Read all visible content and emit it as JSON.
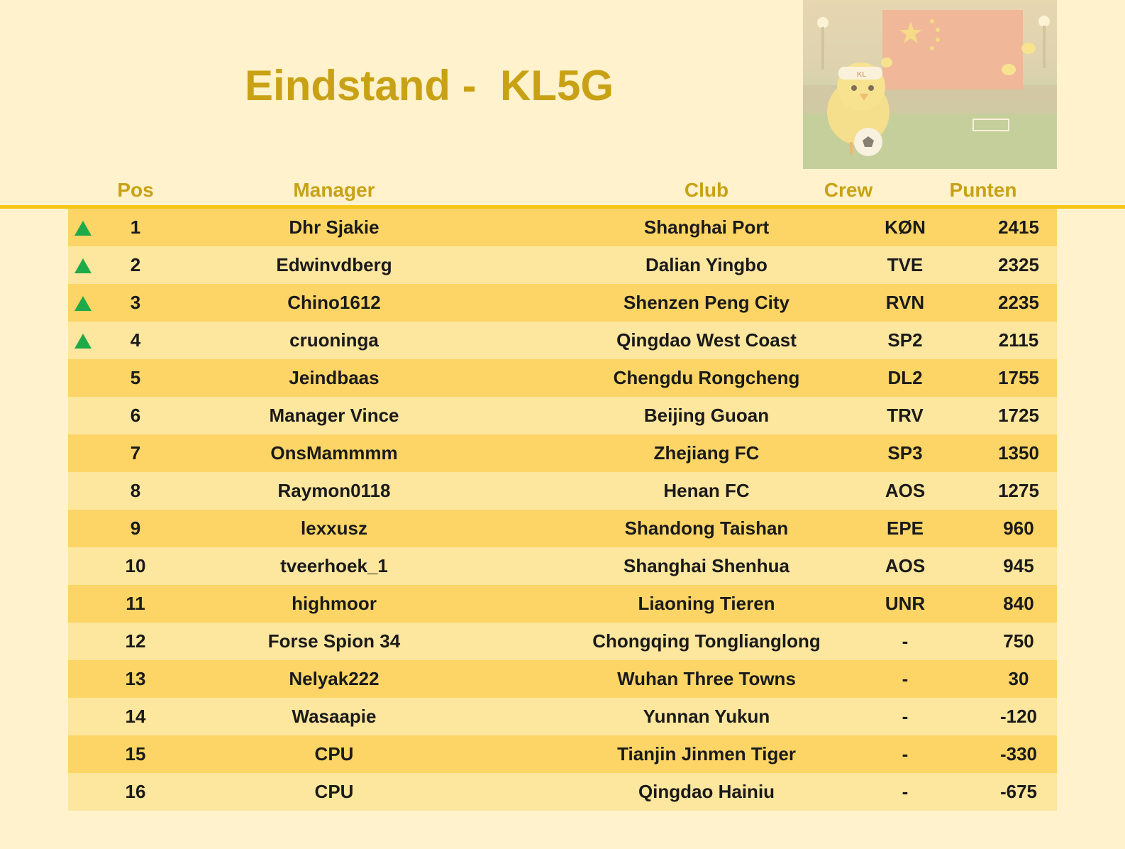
{
  "title": "Eindstand -  KL5G",
  "photo": {
    "badge": "KL"
  },
  "headers": {
    "pos": "Pos",
    "manager": "Manager",
    "club": "Club",
    "crew": "Crew",
    "points": "Punten"
  },
  "colors": {
    "accent": "#c9a115",
    "row_dark": "#fcd566",
    "row_light": "#fde69d",
    "up_arrow": "#1faa4a"
  },
  "rows": [
    {
      "up": true,
      "pos": "1",
      "manager": "Dhr Sjakie",
      "club": "Shanghai Port",
      "crew": "KØN",
      "points": "2415"
    },
    {
      "up": true,
      "pos": "2",
      "manager": "Edwinvdberg",
      "club": "Dalian Yingbo",
      "crew": "TVE",
      "points": "2325"
    },
    {
      "up": true,
      "pos": "3",
      "manager": "Chino1612",
      "club": "Shenzen Peng City",
      "crew": "RVN",
      "points": "2235"
    },
    {
      "up": true,
      "pos": "4",
      "manager": "cruoninga",
      "club": "Qingdao West Coast",
      "crew": "SP2",
      "points": "2115"
    },
    {
      "up": false,
      "pos": "5",
      "manager": "Jeindbaas",
      "club": "Chengdu Rongcheng",
      "crew": "DL2",
      "points": "1755"
    },
    {
      "up": false,
      "pos": "6",
      "manager": "Manager Vince",
      "club": "Beijing Guoan",
      "crew": "TRV",
      "points": "1725"
    },
    {
      "up": false,
      "pos": "7",
      "manager": "OnsMammmm",
      "club": "Zhejiang FC",
      "crew": "SP3",
      "points": "1350"
    },
    {
      "up": false,
      "pos": "8",
      "manager": "Raymon0118",
      "club": "Henan FC",
      "crew": "AOS",
      "points": "1275"
    },
    {
      "up": false,
      "pos": "9",
      "manager": "lexxusz",
      "club": "Shandong Taishan",
      "crew": "EPE",
      "points": "960"
    },
    {
      "up": false,
      "pos": "10",
      "manager": "tveerhoek_1",
      "club": "Shanghai Shenhua",
      "crew": "AOS",
      "points": "945"
    },
    {
      "up": false,
      "pos": "11",
      "manager": "highmoor",
      "club": "Liaoning Tieren",
      "crew": "UNR",
      "points": "840"
    },
    {
      "up": false,
      "pos": "12",
      "manager": "Forse Spion 34",
      "club": "Chongqing Tonglianglong",
      "crew": "-",
      "points": "750"
    },
    {
      "up": false,
      "pos": "13",
      "manager": "Nelyak222",
      "club": "Wuhan Three Towns",
      "crew": "-",
      "points": "30"
    },
    {
      "up": false,
      "pos": "14",
      "manager": "Wasaapie",
      "club": "Yunnan Yukun",
      "crew": "-",
      "points": "-120"
    },
    {
      "up": false,
      "pos": "15",
      "manager": "CPU",
      "club": "Tianjin Jinmen Tiger",
      "crew": "-",
      "points": "-330"
    },
    {
      "up": false,
      "pos": "16",
      "manager": "CPU",
      "club": "Qingdao Hainiu",
      "crew": "-",
      "points": "-675"
    }
  ]
}
